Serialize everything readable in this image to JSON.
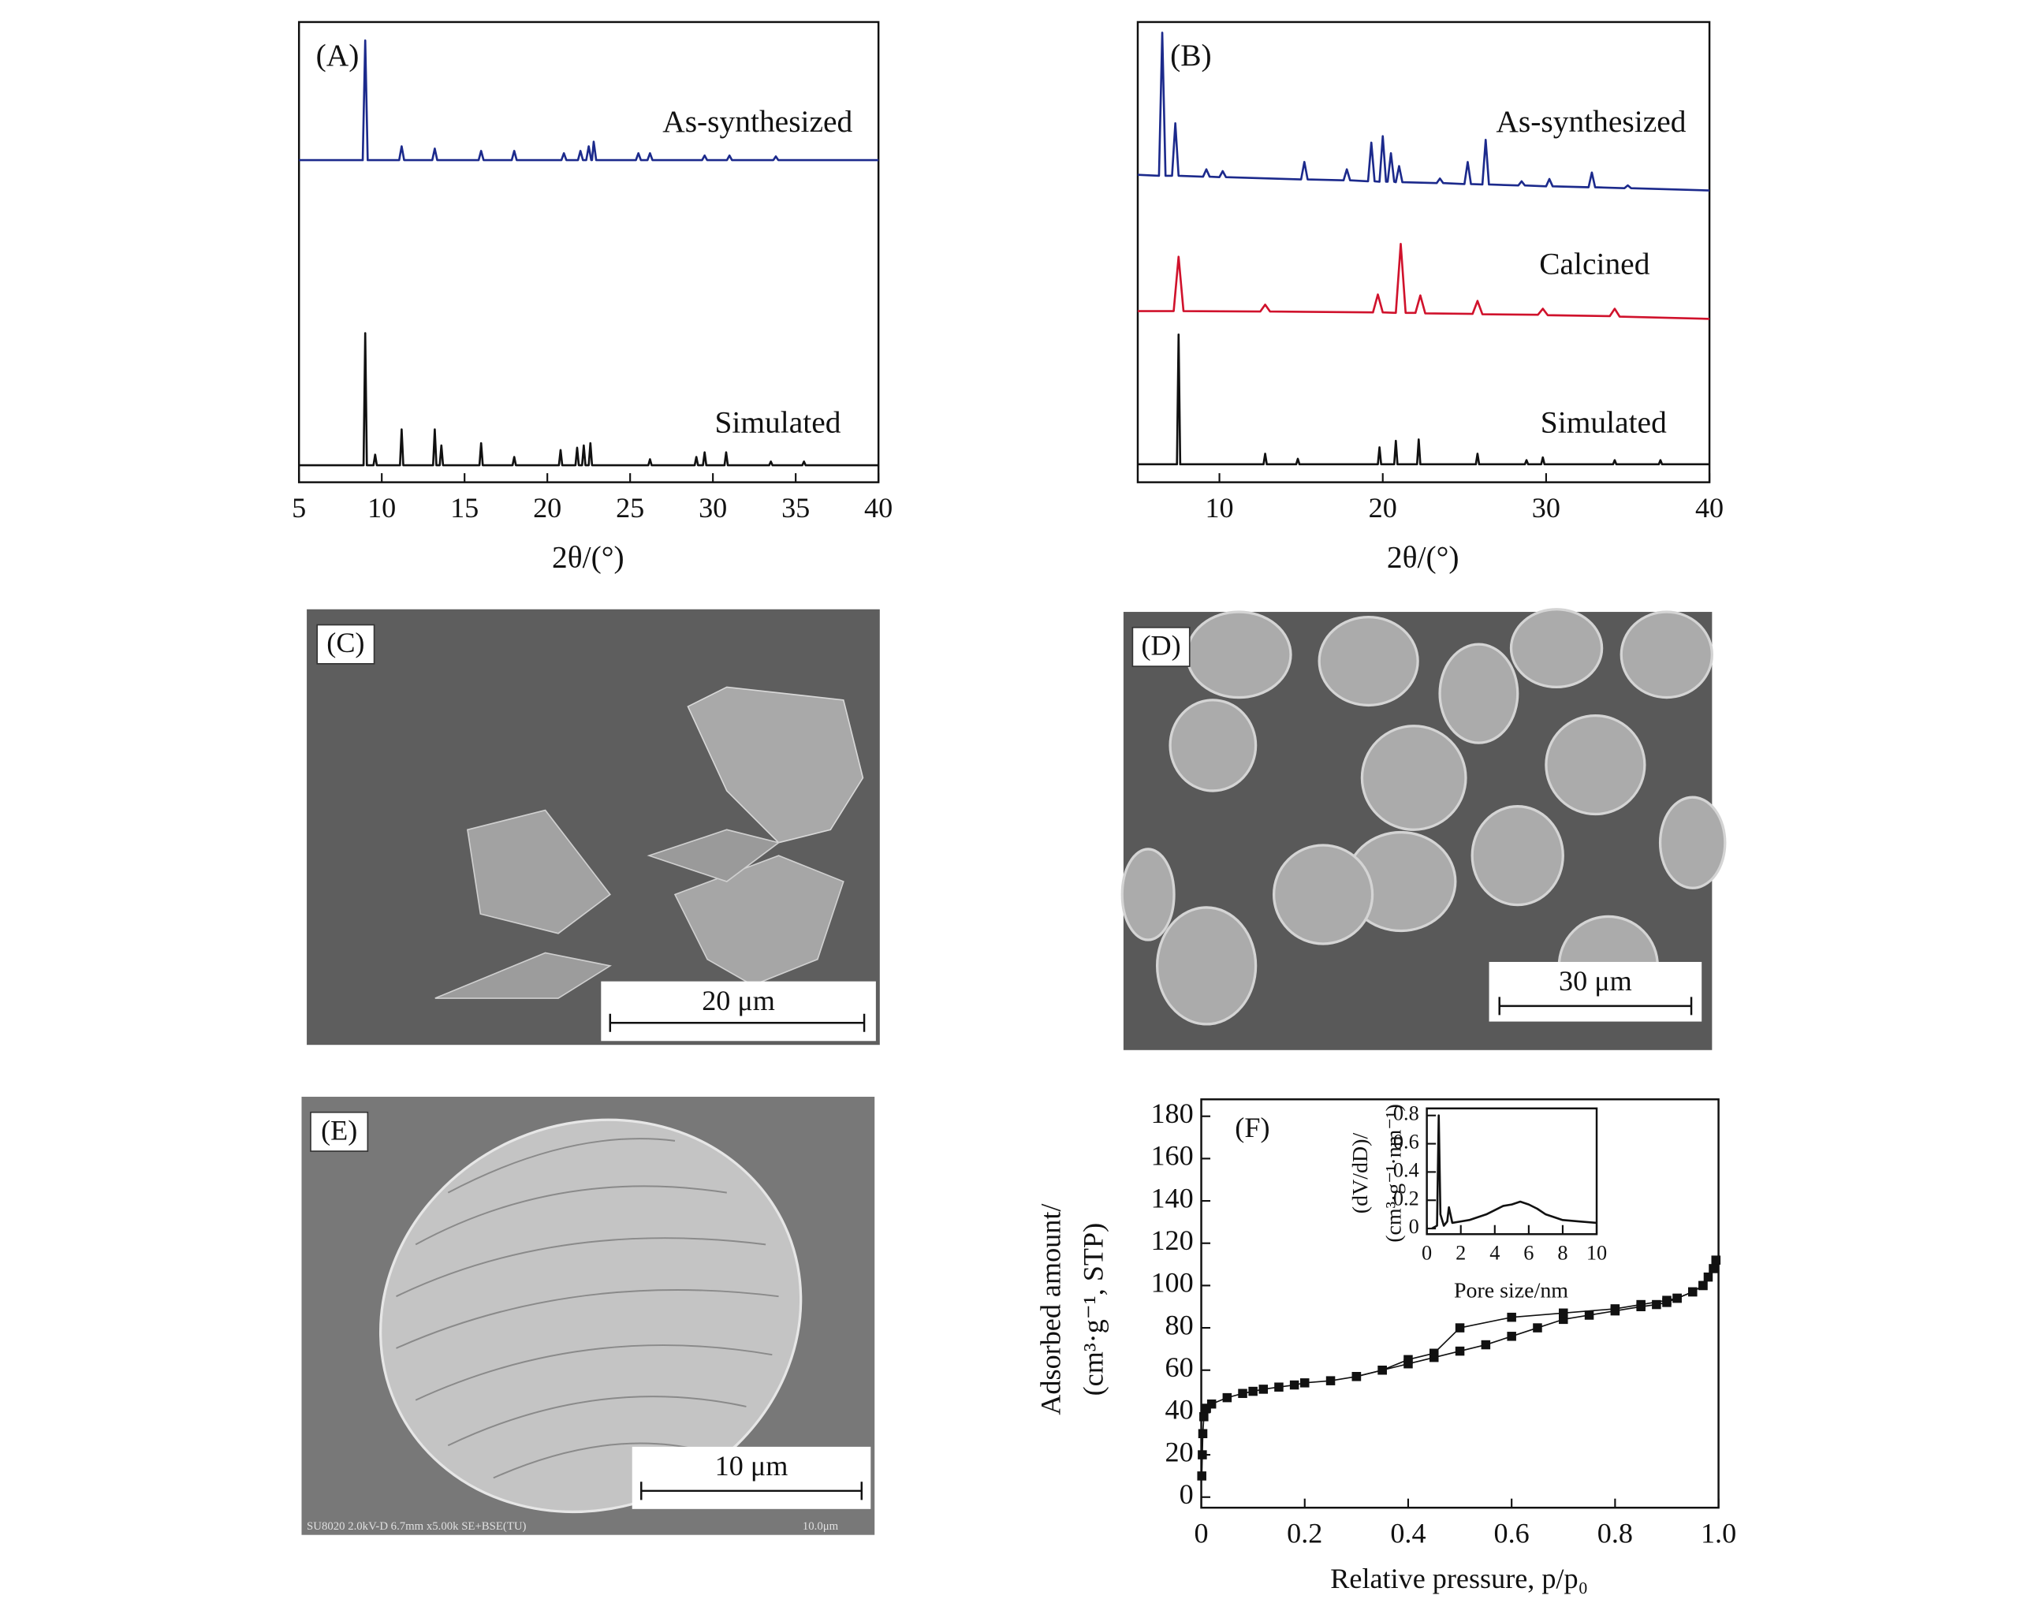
{
  "chart_data": [
    {
      "type": "line",
      "panel_label": "(A)",
      "xlabel": "2θ/(°)",
      "xlim": [
        5,
        40
      ],
      "xticks": [
        5,
        10,
        15,
        20,
        25,
        30,
        35,
        40
      ],
      "ylim": [
        0,
        100
      ],
      "series": [
        {
          "name": "As-synthesized",
          "color": "#1c2a8c",
          "x": [
            5,
            8.85,
            9.0,
            9.15,
            11.05,
            11.2,
            11.35,
            13.05,
            13.2,
            13.35,
            15.85,
            16.0,
            16.15,
            17.85,
            18.0,
            18.15,
            20.85,
            21.0,
            21.15,
            21.85,
            22.0,
            22.15,
            22.35,
            22.5,
            22.65,
            22.7,
            22.8,
            22.95,
            25.35,
            25.5,
            25.65,
            26.05,
            26.2,
            26.35,
            29.35,
            29.5,
            29.65,
            30.85,
            31.0,
            31.15,
            33.65,
            33.8,
            33.95,
            40
          ],
          "values": [
            70,
            70,
            96,
            70,
            70,
            73,
            70,
            70,
            72.5,
            70,
            70,
            72,
            70,
            70,
            72,
            70,
            70,
            71.5,
            70,
            70,
            72,
            70,
            70,
            73,
            70,
            70,
            74,
            70,
            70,
            71.5,
            70,
            70,
            71.5,
            70,
            70,
            71,
            70,
            70,
            71,
            70,
            70,
            70.8,
            70,
            70
          ]
        },
        {
          "name": "Simulated",
          "color": "#111111",
          "x": [
            5,
            8.9,
            9.0,
            9.1,
            9.5,
            9.6,
            9.7,
            11.1,
            11.2,
            11.3,
            13.1,
            13.2,
            13.3,
            13.5,
            13.6,
            13.7,
            15.9,
            16.0,
            16.1,
            17.9,
            18.0,
            18.1,
            20.7,
            20.8,
            20.9,
            21.7,
            21.8,
            21.9,
            22.1,
            22.2,
            22.3,
            22.5,
            22.6,
            22.7,
            26.1,
            26.2,
            26.3,
            28.9,
            29.0,
            29.1,
            29.4,
            29.5,
            29.6,
            30.7,
            30.8,
            30.9,
            33.4,
            33.5,
            33.6,
            35.4,
            35.5,
            35.6,
            40
          ],
          "values": [
            3.7,
            3.7,
            32.4,
            3.7,
            3.7,
            6,
            3.7,
            3.7,
            11.5,
            3.7,
            3.7,
            11.5,
            3.7,
            3.7,
            8,
            3.7,
            3.7,
            8.5,
            3.7,
            3.7,
            5.5,
            3.7,
            3.7,
            7,
            3.7,
            3.7,
            7.5,
            3.7,
            3.7,
            8,
            3.7,
            3.7,
            8.5,
            3.7,
            3.7,
            5,
            3.7,
            3.7,
            5.5,
            3.7,
            3.7,
            6.5,
            3.7,
            3.7,
            6.5,
            3.7,
            3.7,
            4.5,
            3.7,
            3.7,
            4.5,
            3.7,
            3.7
          ]
        }
      ]
    },
    {
      "type": "line",
      "panel_label": "(B)",
      "xlabel": "2θ/(°)",
      "xlim": [
        5,
        40
      ],
      "xticks": [
        10,
        20,
        30,
        40
      ],
      "ylim": [
        0,
        100
      ],
      "series": [
        {
          "name": "As-synthesized",
          "color": "#1c2a8c",
          "x": [
            5,
            6.3,
            6.5,
            6.7,
            7.1,
            7.3,
            7.5,
            9.0,
            9.2,
            9.4,
            10.0,
            10.2,
            10.4,
            15.0,
            15.2,
            15.4,
            17.6,
            17.8,
            18.0,
            19.1,
            19.3,
            19.5,
            19.8,
            20.0,
            20.2,
            20.3,
            20.5,
            20.7,
            20.8,
            21.0,
            21.2,
            23.3,
            23.5,
            23.7,
            25.0,
            25.2,
            25.4,
            26.1,
            26.3,
            26.5,
            28.3,
            28.5,
            28.7,
            30.0,
            30.2,
            30.4,
            32.6,
            32.8,
            33.0,
            34.8,
            35.0,
            35.2,
            40
          ],
          "values": [
            66.8,
            66.6,
            97.7,
            66.6,
            66.6,
            78,
            66.6,
            66.4,
            68,
            66.4,
            66.3,
            67.6,
            66.3,
            65.8,
            69.6,
            65.8,
            65.6,
            68,
            65.6,
            65.4,
            73.8,
            65.4,
            65.3,
            75.2,
            65.3,
            65.3,
            71.5,
            65.3,
            65.2,
            68.7,
            65.2,
            65,
            66,
            65,
            64.8,
            69.6,
            64.8,
            64.7,
            74.4,
            64.7,
            64.5,
            65.4,
            64.5,
            64.3,
            65.9,
            64.3,
            64.1,
            67.3,
            64.1,
            63.9,
            64.5,
            63.9,
            63.4
          ]
        },
        {
          "name": "Calcined",
          "color": "#d0122c",
          "x": [
            5,
            7.2,
            7.5,
            7.8,
            12.5,
            12.8,
            13.1,
            19.4,
            19.7,
            20.0,
            20.8,
            21.1,
            21.4,
            22.0,
            22.3,
            22.6,
            25.5,
            25.8,
            26.1,
            29.5,
            29.8,
            30.1,
            33.9,
            34.2,
            34.5,
            40
          ],
          "values": [
            37.2,
            37.2,
            49,
            37.2,
            37.1,
            38.6,
            37.1,
            36.9,
            40.8,
            36.9,
            36.8,
            51.8,
            36.8,
            36.8,
            40.6,
            36.7,
            36.6,
            39.4,
            36.5,
            36.4,
            37.7,
            36.3,
            36.1,
            37.7,
            36,
            35.5
          ]
        },
        {
          "name": "Simulated",
          "color": "#111111",
          "x": [
            5,
            7.4,
            7.5,
            7.6,
            12.7,
            12.8,
            12.9,
            14.7,
            14.8,
            14.9,
            19.7,
            19.8,
            19.9,
            20.7,
            20.8,
            20.9,
            22.1,
            22.2,
            22.3,
            25.7,
            25.8,
            25.9,
            28.7,
            28.8,
            28.9,
            29.7,
            29.8,
            29.9,
            34.1,
            34.2,
            34.3,
            36.9,
            37.0,
            37.1,
            40
          ],
          "values": [
            3.9,
            3.9,
            32.1,
            3.9,
            3.9,
            6.2,
            3.9,
            3.9,
            5.1,
            3.9,
            3.9,
            7.6,
            3.9,
            3.9,
            9,
            3.9,
            3.9,
            9.3,
            3.9,
            3.9,
            6.2,
            3.9,
            3.9,
            4.8,
            3.9,
            3.9,
            5.4,
            3.9,
            3.9,
            4.8,
            3.9,
            3.9,
            4.8,
            3.9,
            3.9
          ]
        }
      ]
    },
    {
      "type": "line",
      "markers": "square",
      "panel_label": "(F)",
      "xlabel": "Relative pressure, p/p₀",
      "ylabel": [
        "Adsorbed amount/",
        "(cm³·g⁻¹, STP)"
      ],
      "xlim": [
        0,
        1
      ],
      "xticks": [
        0,
        0.2,
        0.4,
        0.6,
        0.8,
        {
          "value": 1,
          "label": "1.0"
        }
      ],
      "ylim": [
        -5,
        188
      ],
      "yticks": [
        0,
        20,
        40,
        60,
        80,
        100,
        120,
        140,
        160,
        180
      ],
      "series": [
        {
          "color": "#111111",
          "x": [
            0.001,
            0.002,
            0.003,
            0.005,
            0.01,
            0.02,
            0.05,
            0.08,
            0.1,
            0.12,
            0.15,
            0.18,
            0.2,
            0.25,
            0.3,
            0.35,
            0.4,
            0.45,
            0.5,
            0.55,
            0.6,
            0.65,
            0.7,
            0.75,
            0.8,
            0.85,
            0.88,
            0.9,
            0.92,
            0.95,
            0.97,
            0.98,
            0.99,
            0.995
          ],
          "values": [
            10,
            20,
            30,
            38,
            42,
            44,
            47,
            49,
            50,
            51,
            52,
            53,
            54,
            55,
            57,
            60,
            63,
            66,
            69,
            72,
            76,
            80,
            84,
            86,
            88,
            90,
            91,
            92,
            94,
            97,
            100,
            104,
            108,
            112
          ]
        },
        {
          "color": "#111111",
          "x": [
            0.995,
            0.97,
            0.95,
            0.92,
            0.9,
            0.85,
            0.8,
            0.7,
            0.6,
            0.5,
            0.45,
            0.4,
            0.35,
            0.3
          ],
          "values": [
            112,
            100,
            97,
            94,
            93,
            91,
            89,
            87,
            85,
            80,
            68,
            65,
            60,
            57
          ]
        }
      ]
    },
    {
      "type": "line",
      "xlabel": "Pore size/nm",
      "ylabel": [
        "(dV/dD)/",
        "(cm³·g⁻¹·nm⁻¹)"
      ],
      "xlim": [
        0,
        10
      ],
      "xticks": [
        0,
        2,
        4,
        6,
        8,
        10
      ],
      "ylim": [
        -0.04,
        0.85
      ],
      "yticks": [
        0,
        0.2,
        0.4,
        0.6,
        0.8
      ],
      "series": [
        {
          "color": "#111111",
          "x": [
            0.3,
            0.6,
            0.7,
            0.8,
            1.0,
            1.2,
            1.3,
            1.5,
            2,
            2.5,
            3,
            3.5,
            4,
            4.5,
            5,
            5.5,
            6,
            6.5,
            7,
            7.5,
            8,
            9,
            10
          ],
          "values": [
            0,
            0.02,
            0.8,
            0.1,
            0.02,
            0.05,
            0.15,
            0.04,
            0.05,
            0.06,
            0.08,
            0.1,
            0.13,
            0.16,
            0.17,
            0.19,
            0.17,
            0.14,
            0.1,
            0.08,
            0.06,
            0.05,
            0.04
          ]
        }
      ]
    }
  ],
  "images": [
    {
      "label": "(C)",
      "scale_bar": "20 μm"
    },
    {
      "label": "(D)",
      "scale_bar": "30 μm"
    },
    {
      "label": "(E)",
      "scale_bar": "10 μm",
      "footer": "SU8020 2.0kV-D 6.7mm x5.00k SE+BSE(TU)",
      "footer_scale": "10.0μm"
    }
  ]
}
